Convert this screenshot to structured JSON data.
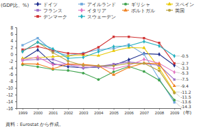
{
  "chart_data": {
    "type": "line",
    "y_label": "(GDP比、%)",
    "x_label": "(年)",
    "source": "資料：Eurostat から作成。",
    "x": [
      1999,
      2000,
      2001,
      2002,
      2003,
      2004,
      2005,
      2006,
      2007,
      2008,
      2009
    ],
    "xlim": [
      1998.6,
      2009.4
    ],
    "xticks": [
      1999,
      2000,
      2001,
      2002,
      2003,
      2004,
      2005,
      2006,
      2007,
      2008,
      2009
    ],
    "ylim": [
      -16,
      8
    ],
    "yticks": [
      -16,
      -14,
      -12,
      -10,
      -8,
      -6,
      -4,
      -2,
      0,
      2,
      4,
      6,
      8
    ],
    "grid": false,
    "legend": "top",
    "data_labels": true,
    "series": [
      {
        "name": "ドイツ",
        "color": "#1f2f8f",
        "marker": "diamond",
        "values": [
          -1.5,
          1.3,
          -2.8,
          -3.7,
          -4.0,
          -3.8,
          -3.3,
          -1.6,
          0.2,
          0.0,
          -3.3
        ],
        "value_labels": [
          null,
          null,
          null,
          null,
          null,
          null,
          null,
          null,
          null,
          null,
          "-3.3"
        ]
      },
      {
        "name": "アイルランド",
        "color": "#6fa8dc",
        "marker": "square",
        "values": [
          2.7,
          4.8,
          0.9,
          -0.4,
          0.4,
          1.4,
          1.7,
          2.9,
          0.0,
          -7.3,
          -14.3
        ],
        "value_labels": [
          null,
          null,
          null,
          null,
          null,
          null,
          null,
          null,
          null,
          null,
          "-14.3"
        ]
      },
      {
        "name": "ギリシャ",
        "color": "#3fa34d",
        "marker": "circle",
        "values": [
          -3.1,
          -3.7,
          -4.5,
          -4.8,
          -5.6,
          -7.5,
          -5.2,
          -3.6,
          -5.1,
          -7.7,
          -13.6
        ],
        "value_labels": [
          null,
          null,
          null,
          null,
          null,
          null,
          null,
          null,
          null,
          null,
          "-13.6"
        ]
      },
      {
        "name": "スペイン",
        "color": "#e8c800",
        "marker": "triangle",
        "values": [
          -1.2,
          -1.0,
          -0.7,
          -0.5,
          -0.2,
          -0.4,
          1.0,
          2.0,
          1.9,
          -4.1,
          -11.2
        ],
        "value_labels": [
          null,
          null,
          null,
          null,
          null,
          null,
          null,
          null,
          null,
          null,
          "-11.2"
        ]
      },
      {
        "name": "フランス",
        "color": "#9b6fc8",
        "marker": "square",
        "values": [
          -1.8,
          -1.5,
          -1.5,
          -3.1,
          -4.1,
          -3.6,
          -2.9,
          -2.3,
          -2.7,
          -3.3,
          -7.5
        ],
        "value_labels": [
          null,
          null,
          null,
          null,
          null,
          null,
          null,
          null,
          null,
          null,
          "-7.5"
        ]
      },
      {
        "name": "イタリア",
        "color": "#e377c2",
        "marker": "diamond",
        "values": [
          -1.7,
          -0.8,
          -3.1,
          -2.9,
          -3.5,
          -3.5,
          -4.3,
          -3.3,
          -1.5,
          -2.7,
          -5.3
        ],
        "value_labels": [
          null,
          null,
          null,
          null,
          null,
          null,
          null,
          null,
          null,
          null,
          "-5.3"
        ]
      },
      {
        "name": "ポルトガル",
        "color": "#f08020",
        "marker": "triangle",
        "values": [
          -2.8,
          -2.9,
          -4.3,
          -2.9,
          -3.0,
          -3.4,
          -6.1,
          -3.9,
          -2.6,
          -2.8,
          -9.4
        ],
        "value_labels": [
          null,
          null,
          null,
          null,
          null,
          null,
          null,
          null,
          null,
          null,
          "-9.4"
        ]
      },
      {
        "name": "英国",
        "color": "#b8a040",
        "marker": "circle",
        "values": [
          0.9,
          3.6,
          0.5,
          -2.0,
          -3.3,
          -3.4,
          -3.4,
          -2.7,
          -2.7,
          -4.9,
          -11.5
        ],
        "value_labels": [
          null,
          null,
          null,
          null,
          null,
          null,
          null,
          null,
          null,
          null,
          "-11.5"
        ]
      },
      {
        "name": "デンマーク",
        "color": "#d03030",
        "marker": "square",
        "values": [
          1.4,
          2.3,
          1.2,
          0.3,
          0.1,
          2.1,
          5.2,
          5.2,
          4.8,
          3.4,
          -2.7
        ],
        "value_labels": [
          null,
          null,
          null,
          null,
          null,
          null,
          null,
          null,
          null,
          null,
          "-2.7"
        ]
      },
      {
        "name": "スウェーデン",
        "color": "#27b0c0",
        "marker": "diamond",
        "values": [
          0.8,
          3.6,
          1.6,
          -1.2,
          -0.9,
          0.8,
          2.3,
          2.5,
          3.8,
          2.5,
          -0.5
        ],
        "value_labels": [
          null,
          null,
          null,
          null,
          null,
          null,
          null,
          null,
          null,
          null,
          "-0.5"
        ]
      }
    ]
  }
}
